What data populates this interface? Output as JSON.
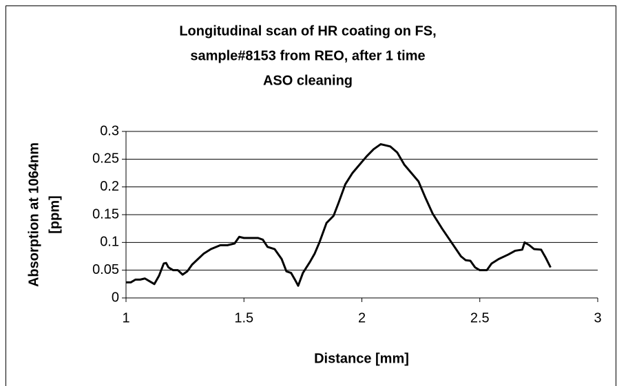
{
  "chart_data": {
    "type": "line",
    "title": [
      "Longitudinal scan of HR coating on FS,",
      "sample#8153 from REO, after 1 time",
      "ASO cleaning"
    ],
    "x_label": "Distance [mm]",
    "y_label": [
      "Absorption at 1064nm",
      "[ppm]"
    ],
    "x": [
      1.0,
      1.02,
      1.04,
      1.06,
      1.08,
      1.1,
      1.12,
      1.14,
      1.16,
      1.17,
      1.18,
      1.2,
      1.22,
      1.24,
      1.26,
      1.28,
      1.3,
      1.33,
      1.36,
      1.4,
      1.43,
      1.46,
      1.48,
      1.5,
      1.52,
      1.56,
      1.58,
      1.6,
      1.63,
      1.66,
      1.68,
      1.7,
      1.72,
      1.73,
      1.75,
      1.78,
      1.8,
      1.82,
      1.85,
      1.88,
      1.9,
      1.93,
      1.96,
      1.99,
      2.02,
      2.05,
      2.08,
      2.12,
      2.15,
      2.18,
      2.21,
      2.24,
      2.27,
      2.3,
      2.34,
      2.38,
      2.42,
      2.44,
      2.46,
      2.48,
      2.5,
      2.53,
      2.55,
      2.58,
      2.62,
      2.65,
      2.68,
      2.69,
      2.71,
      2.73,
      2.76,
      2.78,
      2.8
    ],
    "series": [
      {
        "color": "#000000",
        "values": [
          0.028,
          0.028,
          0.033,
          0.033,
          0.035,
          0.03,
          0.025,
          0.04,
          0.062,
          0.063,
          0.055,
          0.05,
          0.05,
          0.042,
          0.048,
          0.06,
          0.068,
          0.08,
          0.088,
          0.095,
          0.095,
          0.098,
          0.11,
          0.108,
          0.108,
          0.108,
          0.105,
          0.092,
          0.088,
          0.07,
          0.048,
          0.045,
          0.03,
          0.022,
          0.045,
          0.065,
          0.08,
          0.1,
          0.135,
          0.148,
          0.17,
          0.205,
          0.225,
          0.24,
          0.255,
          0.268,
          0.277,
          0.273,
          0.262,
          0.24,
          0.225,
          0.21,
          0.18,
          0.152,
          0.125,
          0.1,
          0.075,
          0.068,
          0.067,
          0.055,
          0.05,
          0.05,
          0.062,
          0.07,
          0.078,
          0.085,
          0.087,
          0.1,
          0.095,
          0.088,
          0.087,
          0.072,
          0.055
        ]
      }
    ],
    "xlim": [
      1,
      3
    ],
    "xticks": [
      1,
      1.5,
      2,
      2.5,
      3
    ],
    "ylim": [
      0,
      0.3
    ],
    "yticks": [
      0,
      0.05,
      0.1,
      0.15,
      0.2,
      0.25,
      0.3
    ],
    "grid": true
  }
}
